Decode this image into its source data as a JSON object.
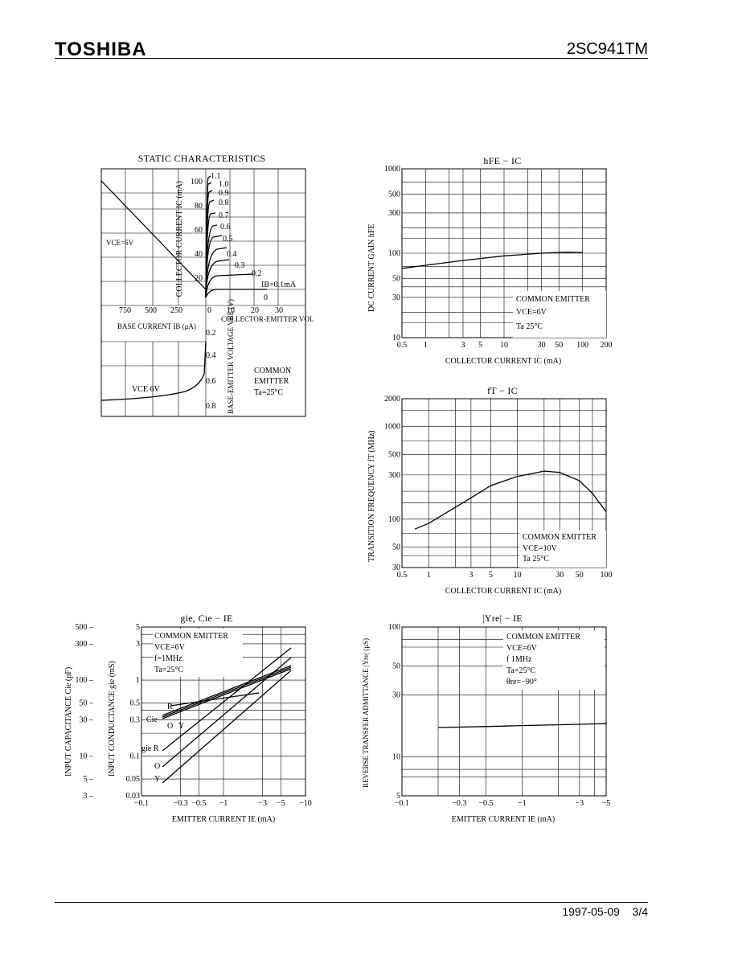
{
  "header": {
    "brand": "TOSHIBA",
    "part_number": "2SC941TM"
  },
  "footer": {
    "date": "1997-05-09",
    "page": "3/4"
  },
  "chart_data": [
    {
      "type": "line",
      "title": "STATIC CHARACTERISTICS",
      "quadrants": {
        "output": {
          "xlabel": "COLLECTOR-EMITTER VOLTAGE VCE (V)",
          "ylabel": "COLLECTOR CURRENT IC (mA)",
          "x_ticks": [
            "0",
            "10",
            "20",
            "30"
          ],
          "y_ticks": [
            "20",
            "40",
            "60",
            "80",
            "100"
          ],
          "curve_labels": [
            "1.1",
            "1.0",
            "0.9",
            "0.8",
            "0.7",
            "0.6",
            "0.5",
            "0.4",
            "0.3",
            "0.2",
            "IB=0.1mA",
            "0"
          ]
        },
        "input": {
          "xlabel": "BASE CURRENT IB (μA)",
          "x_ticks": [
            "750",
            "500",
            "250"
          ],
          "ylabel": "BASE-EMITTER VOLTAGE VBE (V)",
          "y_ticks": [
            "0.2",
            "0.4",
            "0.6",
            "0.8"
          ],
          "condition": "VCE   6V"
        },
        "load_line_label": "VCE=6V",
        "notes": [
          "COMMON",
          "EMITTER",
          "Ta=25°C"
        ]
      }
    },
    {
      "type": "line",
      "title": "hFE − IC",
      "xlabel": "COLLECTOR CURRENT  IC  (mA)",
      "ylabel": "DC CURRENT GAIN  hFE",
      "x_scale": "log",
      "y_scale": "log",
      "x_ticks": [
        "0.5",
        "1",
        "3",
        "5",
        "10",
        "30",
        "50",
        "100",
        "200"
      ],
      "y_ticks": [
        "10",
        "30",
        "50",
        "100",
        "300",
        "500",
        "1000"
      ],
      "xlim": [
        0.5,
        200
      ],
      "ylim": [
        10,
        1000
      ],
      "series": [
        {
          "x": [
            0.5,
            1,
            3,
            10,
            30,
            60,
            100
          ],
          "y": [
            66,
            72,
            82,
            93,
            100,
            103,
            102
          ]
        }
      ],
      "notes": [
        "COMMON EMITTER",
        "VCE=6V",
        "Ta   25°C"
      ]
    },
    {
      "type": "line",
      "title": "fT − IC",
      "xlabel": "COLLECTOR CURRENT   IC  (mA)",
      "ylabel": "TRANSITION FREQUENCY  fT  (MHz)",
      "x_scale": "log",
      "y_scale": "log",
      "x_ticks": [
        "0.5",
        "1",
        "3",
        "5",
        "10",
        "30",
        "50",
        "100"
      ],
      "y_ticks": [
        "30",
        "50",
        "100",
        "300",
        "500",
        "1000",
        "2000"
      ],
      "xlim": [
        0.5,
        100
      ],
      "ylim": [
        30,
        2000
      ],
      "series": [
        {
          "x": [
            0.7,
            1,
            3,
            5,
            10,
            20,
            30,
            50,
            70,
            100
          ],
          "y": [
            78,
            90,
            170,
            230,
            290,
            330,
            320,
            260,
            190,
            120
          ]
        }
      ],
      "notes": [
        "COMMON EMITTER",
        "VCE=10V",
        "Ta  25°C"
      ]
    },
    {
      "type": "line",
      "title": "gie, Cie − IE",
      "xlabel": "EMITTER CURRENT   IE   (mA)",
      "ylabel": "INPUT CONDUCTANCE   gie   (mS)",
      "ylabel2": "INPUT CAPACITANCE   Cie   (pF)",
      "x_scale": "log",
      "y_scale": "log",
      "x_ticks": [
        "−0.1",
        "−0.3",
        "−0.5",
        "−1",
        "−3",
        "−5",
        "−10"
      ],
      "y_ticks": [
        "0.03",
        "0.05",
        "0.1",
        "0.3",
        "0.5",
        "1",
        "3",
        "5"
      ],
      "y2_ticks": [
        "3",
        "5",
        "10",
        "30",
        "50",
        "100",
        "300",
        "500"
      ],
      "series_labels": [
        "Cie",
        "R",
        "O",
        "Y",
        "gie R",
        "O",
        "Y"
      ],
      "notes": [
        "COMMON EMITTER",
        "VCE=6V",
        "f=1MHz",
        "Ta=25°C"
      ]
    },
    {
      "type": "line",
      "title": "|Yre| − IE",
      "xlabel": "EMITTER CURRENT   IE   (mA)",
      "ylabel": "REVERSE TRANSFER ADMITTANCE |Yre| (μS)",
      "x_scale": "log",
      "y_scale": "log",
      "x_ticks": [
        "−0.1",
        "−0.3",
        "−0.5",
        "−1",
        "−3",
        "−5"
      ],
      "y_ticks": [
        "5",
        "10",
        "30",
        "50",
        "100"
      ],
      "series": [
        {
          "x": [
            -0.2,
            -0.5,
            -1,
            -3,
            -5
          ],
          "y": [
            16.8,
            17.1,
            17.4,
            17.8,
            18.0
          ]
        }
      ],
      "notes": [
        "COMMON EMITTER",
        "VCE=6V",
        "f   1MHz",
        "Ta=25°C",
        "θre=−90°"
      ]
    }
  ]
}
